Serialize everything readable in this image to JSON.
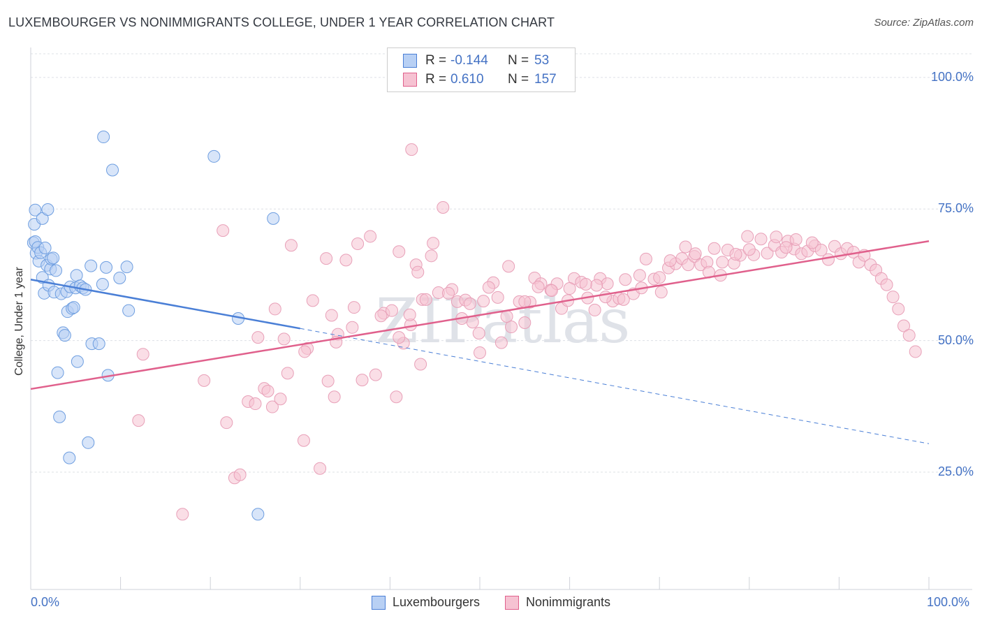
{
  "title": "LUXEMBOURGER VS NONIMMIGRANTS COLLEGE, UNDER 1 YEAR CORRELATION CHART",
  "source": "Source: ZipAtlas.com",
  "watermark": "ZIPatlas",
  "colors": {
    "blue": "#4a7fd6",
    "blue_fill": "#b8d0f4",
    "pink": "#e0608c",
    "pink_fill": "#f6c2d2",
    "tick_text": "#4472c4"
  },
  "legend": {
    "rows": [
      {
        "r_label": "R =",
        "r_value": "-0.144",
        "n_label": "N =",
        "n_value": "53"
      },
      {
        "r_label": "R =",
        "r_value": "0.610",
        "n_label": "N =",
        "n_value": "157"
      }
    ]
  },
  "bottom_legend": [
    "Luxembourgers",
    "Nonimmigrants"
  ],
  "chart_data": {
    "type": "scatter",
    "title": "LUXEMBOURGER VS NONIMMIGRANTS COLLEGE, UNDER 1 YEAR CORRELATION CHART",
    "xlabel": "",
    "ylabel": "College, Under 1 year",
    "xlim": [
      0,
      100
    ],
    "ylim": [
      2.7,
      104.5
    ],
    "x_tick_labels": [
      "0.0%",
      "100.0%"
    ],
    "y_ticks": [
      25,
      50,
      75,
      100
    ],
    "y_tick_labels": [
      "25.0%",
      "50.0%",
      "75.0%",
      "100.0%"
    ],
    "grid": true,
    "series": [
      {
        "name": "Luxembourgers",
        "color": "#4a7fd6",
        "trend": {
          "x0": 0,
          "y0": 61.6,
          "x1": 30,
          "y1": 52.3,
          "dash_to_x": 100,
          "dash_to_y": 30.4
        },
        "points": [
          [
            0.3,
            68.6
          ],
          [
            0.5,
            68.8
          ],
          [
            0.6,
            66.6
          ],
          [
            0.8,
            67.7
          ],
          [
            0.9,
            65.1
          ],
          [
            1.1,
            66.7
          ],
          [
            1.3,
            62.0
          ],
          [
            1.5,
            59.0
          ],
          [
            1.6,
            67.6
          ],
          [
            1.8,
            64.3
          ],
          [
            2.0,
            60.5
          ],
          [
            2.2,
            63.6
          ],
          [
            2.3,
            65.5
          ],
          [
            2.5,
            65.7
          ],
          [
            2.6,
            59.2
          ],
          [
            2.8,
            63.3
          ],
          [
            3.0,
            43.9
          ],
          [
            3.2,
            35.5
          ],
          [
            3.4,
            58.9
          ],
          [
            3.6,
            51.5
          ],
          [
            3.8,
            51.0
          ],
          [
            4.0,
            59.3
          ],
          [
            4.1,
            55.5
          ],
          [
            4.3,
            27.7
          ],
          [
            4.4,
            60.2
          ],
          [
            4.6,
            56.1
          ],
          [
            4.8,
            56.3
          ],
          [
            5.0,
            60.0
          ],
          [
            5.1,
            62.4
          ],
          [
            5.2,
            46.0
          ],
          [
            5.5,
            60.4
          ],
          [
            5.8,
            60.0
          ],
          [
            6.1,
            59.7
          ],
          [
            6.4,
            30.6
          ],
          [
            6.7,
            64.2
          ],
          [
            6.8,
            49.4
          ],
          [
            7.6,
            49.4
          ],
          [
            8.0,
            60.7
          ],
          [
            8.1,
            88.7
          ],
          [
            8.4,
            63.9
          ],
          [
            8.6,
            43.4
          ],
          [
            9.1,
            82.4
          ],
          [
            9.9,
            61.9
          ],
          [
            10.7,
            64.0
          ],
          [
            10.9,
            55.7
          ],
          [
            20.4,
            85.0
          ],
          [
            23.1,
            54.2
          ],
          [
            25.3,
            17.0
          ],
          [
            27.0,
            73.2
          ],
          [
            0.4,
            72.1
          ],
          [
            0.5,
            74.8
          ],
          [
            1.3,
            73.2
          ],
          [
            1.9,
            74.9
          ]
        ]
      },
      {
        "name": "Nonimmigrants",
        "color": "#e0608c",
        "trend": {
          "x0": 0,
          "y0": 40.8,
          "x1": 100,
          "y1": 68.9
        },
        "points": [
          [
            12.0,
            34.8
          ],
          [
            12.5,
            47.4
          ],
          [
            16.9,
            17.0
          ],
          [
            19.3,
            42.4
          ],
          [
            21.4,
            70.9
          ],
          [
            21.8,
            34.4
          ],
          [
            22.7,
            23.9
          ],
          [
            23.3,
            24.5
          ],
          [
            24.2,
            38.4
          ],
          [
            25.0,
            38.0
          ],
          [
            25.3,
            50.6
          ],
          [
            26.0,
            40.9
          ],
          [
            26.4,
            40.4
          ],
          [
            26.9,
            37.4
          ],
          [
            27.2,
            56.0
          ],
          [
            27.8,
            38.9
          ],
          [
            28.2,
            50.3
          ],
          [
            28.6,
            43.8
          ],
          [
            29.0,
            68.1
          ],
          [
            30.4,
            31.0
          ],
          [
            30.8,
            48.5
          ],
          [
            31.4,
            57.6
          ],
          [
            32.2,
            25.7
          ],
          [
            32.9,
            65.6
          ],
          [
            33.1,
            42.3
          ],
          [
            33.5,
            54.8
          ],
          [
            33.8,
            39.3
          ],
          [
            34.2,
            51.2
          ],
          [
            35.1,
            65.3
          ],
          [
            35.8,
            52.5
          ],
          [
            36.4,
            68.4
          ],
          [
            36.9,
            42.5
          ],
          [
            37.8,
            69.8
          ],
          [
            38.4,
            43.5
          ],
          [
            39.3,
            55.2
          ],
          [
            40.2,
            55.7
          ],
          [
            40.7,
            39.3
          ],
          [
            41.0,
            66.9
          ],
          [
            41.5,
            49.5
          ],
          [
            42.3,
            53.0
          ],
          [
            42.9,
            64.4
          ],
          [
            43.1,
            63.0
          ],
          [
            43.4,
            45.5
          ],
          [
            43.6,
            57.8
          ],
          [
            44.6,
            66.1
          ],
          [
            44.8,
            68.5
          ],
          [
            45.4,
            59.1
          ],
          [
            46.9,
            59.7
          ],
          [
            47.5,
            57.4
          ],
          [
            48.4,
            57.7
          ],
          [
            48.9,
            57.0
          ],
          [
            49.2,
            53.5
          ],
          [
            49.9,
            51.4
          ],
          [
            50.4,
            57.5
          ],
          [
            51.5,
            61.0
          ],
          [
            52.0,
            58.2
          ],
          [
            52.4,
            49.6
          ],
          [
            53.2,
            64.1
          ],
          [
            53.5,
            52.6
          ],
          [
            54.4,
            57.4
          ],
          [
            55.0,
            53.4
          ],
          [
            55.6,
            57.3
          ],
          [
            56.1,
            61.9
          ],
          [
            56.8,
            60.8
          ],
          [
            57.9,
            59.6
          ],
          [
            58.6,
            60.8
          ],
          [
            59.1,
            56.1
          ],
          [
            59.8,
            57.6
          ],
          [
            60.5,
            61.8
          ],
          [
            61.3,
            61.1
          ],
          [
            62.0,
            58.1
          ],
          [
            62.8,
            55.8
          ],
          [
            63.4,
            61.8
          ],
          [
            64.2,
            60.8
          ],
          [
            64.8,
            57.5
          ],
          [
            65.5,
            58.0
          ],
          [
            66.2,
            61.6
          ],
          [
            67.1,
            58.9
          ],
          [
            67.8,
            62.4
          ],
          [
            68.5,
            65.5
          ],
          [
            69.4,
            61.7
          ],
          [
            70.2,
            59.2
          ],
          [
            71.0,
            63.8
          ],
          [
            71.8,
            64.6
          ],
          [
            72.5,
            65.6
          ],
          [
            73.2,
            64.4
          ],
          [
            73.9,
            66.0
          ],
          [
            74.6,
            64.4
          ],
          [
            75.3,
            64.9
          ],
          [
            76.1,
            67.5
          ],
          [
            76.8,
            62.4
          ],
          [
            77.6,
            67.2
          ],
          [
            78.3,
            64.7
          ],
          [
            79.0,
            66.2
          ],
          [
            79.8,
            69.8
          ],
          [
            80.5,
            66.3
          ],
          [
            81.3,
            69.3
          ],
          [
            82.0,
            66.6
          ],
          [
            82.8,
            68.1
          ],
          [
            83.6,
            66.8
          ],
          [
            84.3,
            68.9
          ],
          [
            85.0,
            67.4
          ],
          [
            85.8,
            66.5
          ],
          [
            86.5,
            67.0
          ],
          [
            87.3,
            68.0
          ],
          [
            88.0,
            67.2
          ],
          [
            88.8,
            65.4
          ],
          [
            89.5,
            67.9
          ],
          [
            90.2,
            66.5
          ],
          [
            90.9,
            67.5
          ],
          [
            91.6,
            66.8
          ],
          [
            92.2,
            64.9
          ],
          [
            92.8,
            66.2
          ],
          [
            93.5,
            64.4
          ],
          [
            94.1,
            63.4
          ],
          [
            94.7,
            61.8
          ],
          [
            95.3,
            60.6
          ],
          [
            96.0,
            58.3
          ],
          [
            96.6,
            56.0
          ],
          [
            97.2,
            52.8
          ],
          [
            97.8,
            51.0
          ],
          [
            98.5,
            47.9
          ],
          [
            87.0,
            68.6
          ],
          [
            85.2,
            69.2
          ],
          [
            84.1,
            67.7
          ],
          [
            83.0,
            69.7
          ],
          [
            80.0,
            67.3
          ],
          [
            78.5,
            66.4
          ],
          [
            77.0,
            64.9
          ],
          [
            75.5,
            63.0
          ],
          [
            74.0,
            66.5
          ],
          [
            72.9,
            67.8
          ],
          [
            71.2,
            65.2
          ],
          [
            70.0,
            62.0
          ],
          [
            68.0,
            60.0
          ],
          [
            66.0,
            57.8
          ],
          [
            64.0,
            58.3
          ],
          [
            63.0,
            60.5
          ],
          [
            61.8,
            60.7
          ],
          [
            60.0,
            59.9
          ],
          [
            58.0,
            59.5
          ],
          [
            56.5,
            60.2
          ],
          [
            55.0,
            57.4
          ],
          [
            53.0,
            54.6
          ],
          [
            51.0,
            60.1
          ],
          [
            48.0,
            54.2
          ],
          [
            46.5,
            59.0
          ],
          [
            44.0,
            57.8
          ],
          [
            41.0,
            50.6
          ],
          [
            39.0,
            54.7
          ],
          [
            36.0,
            56.3
          ],
          [
            34.0,
            49.7
          ],
          [
            30.5,
            47.9
          ],
          [
            42.4,
            86.3
          ],
          [
            45.9,
            75.3
          ],
          [
            42.2,
            54.9
          ],
          [
            50.0,
            47.7
          ]
        ]
      }
    ]
  }
}
